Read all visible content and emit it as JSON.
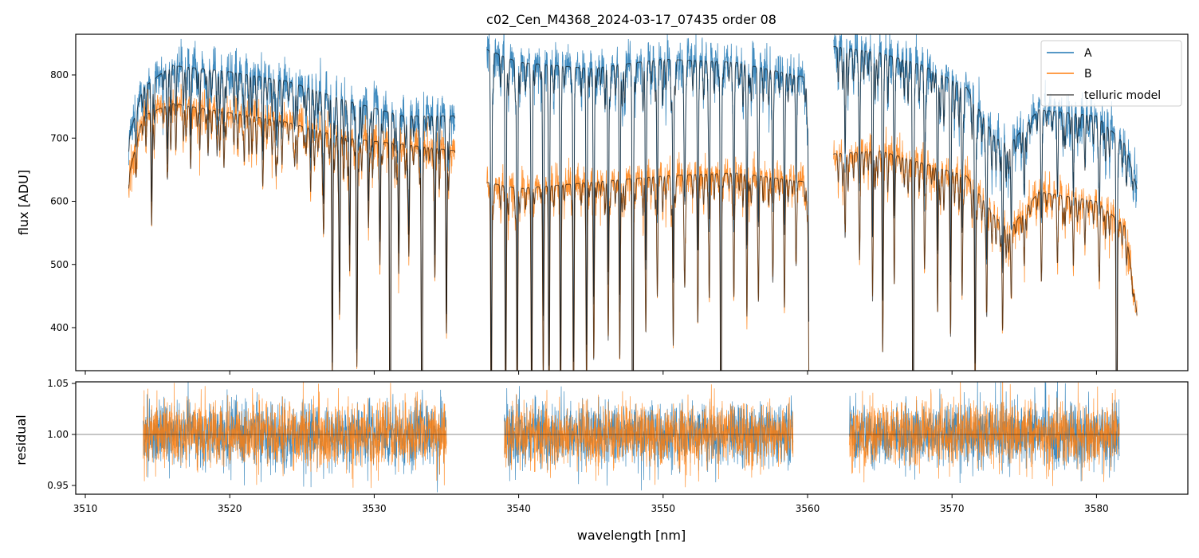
{
  "chart_data": [
    {
      "type": "line",
      "title": "c02_Cen_M4368_2024-03-17_07435  order 08",
      "xlabel": "",
      "ylabel": "flux [ADU]",
      "xlim": [
        3509.3,
        3586.3
      ],
      "ylim": [
        332,
        864
      ],
      "xticks": [
        3510,
        3520,
        3530,
        3540,
        3550,
        3560,
        3570,
        3580
      ],
      "yticks": [
        400,
        500,
        600,
        700,
        800
      ],
      "grid": false,
      "legend": {
        "placement": "top-right",
        "entries": [
          "A",
          "B",
          "telluric model"
        ]
      },
      "colors": {
        "A": "#1f77b4",
        "B": "#ff7f0e",
        "telluric model": "#000000"
      },
      "segments": [
        [
          3513.0,
          3535.6
        ],
        [
          3537.8,
          3560.1
        ],
        [
          3561.8,
          3582.8
        ]
      ],
      "series": [
        {
          "name": "A",
          "continuum": [
            [
              3513.0,
              700
            ],
            [
              3514,
              780
            ],
            [
              3516,
              815
            ],
            [
              3520,
              805
            ],
            [
              3524,
              790
            ],
            [
              3528,
              760
            ],
            [
              3532,
              735
            ],
            [
              3535.6,
              735
            ],
            [
              3537.8,
              840
            ],
            [
              3540,
              820
            ],
            [
              3545,
              810
            ],
            [
              3550,
              825
            ],
            [
              3555,
              820
            ],
            [
              3560.1,
              795
            ],
            [
              3561.8,
              845
            ],
            [
              3565,
              835
            ],
            [
              3568,
              815
            ],
            [
              3571,
              780
            ],
            [
              3573,
              700
            ],
            [
              3574,
              690
            ],
            [
              3576,
              745
            ],
            [
              3580,
              735
            ],
            [
              3582,
              690
            ],
            [
              3582.8,
              620
            ]
          ]
        },
        {
          "name": "B",
          "continuum": [
            [
              3513.0,
              640
            ],
            [
              3514,
              735
            ],
            [
              3516,
              755
            ],
            [
              3520,
              740
            ],
            [
              3524,
              725
            ],
            [
              3528,
              700
            ],
            [
              3532,
              690
            ],
            [
              3535.6,
              680
            ],
            [
              3537.8,
              630
            ],
            [
              3540,
              620
            ],
            [
              3545,
              630
            ],
            [
              3550,
              640
            ],
            [
              3555,
              645
            ],
            [
              3560.1,
              630
            ],
            [
              3561.8,
              675
            ],
            [
              3565,
              680
            ],
            [
              3568,
              660
            ],
            [
              3571,
              640
            ],
            [
              3573,
              575
            ],
            [
              3574,
              555
            ],
            [
              3576,
              615
            ],
            [
              3580,
              600
            ],
            [
              3582,
              560
            ],
            [
              3582.8,
              420
            ]
          ]
        }
      ],
      "telluric_lines": [
        [
          3514.6,
          0.18
        ],
        [
          3515.7,
          0.12
        ],
        [
          3517.3,
          0.08
        ],
        [
          3518.5,
          0.1
        ],
        [
          3519.6,
          0.12
        ],
        [
          3521.0,
          0.1
        ],
        [
          3522.3,
          0.08
        ],
        [
          3523.2,
          0.12
        ],
        [
          3524.5,
          0.09
        ],
        [
          3525.6,
          0.14
        ],
        [
          3526.5,
          0.22
        ],
        [
          3527.1,
          0.55
        ],
        [
          3527.6,
          0.4
        ],
        [
          3528.3,
          0.3
        ],
        [
          3528.8,
          0.52
        ],
        [
          3529.6,
          0.2
        ],
        [
          3530.4,
          0.25
        ],
        [
          3531.1,
          0.9
        ],
        [
          3531.7,
          0.3
        ],
        [
          3532.4,
          0.25
        ],
        [
          3533.3,
          0.9
        ],
        [
          3534.2,
          0.3
        ],
        [
          3535.0,
          0.4
        ],
        [
          3538.1,
          0.62
        ],
        [
          3539.1,
          0.6
        ],
        [
          3539.9,
          0.6
        ],
        [
          3540.9,
          0.62
        ],
        [
          3541.7,
          0.45
        ],
        [
          3542.1,
          0.55
        ],
        [
          3542.9,
          0.58
        ],
        [
          3543.8,
          0.55
        ],
        [
          3544.7,
          0.5
        ],
        [
          3545.2,
          0.45
        ],
        [
          3546.2,
          0.4
        ],
        [
          3547.0,
          0.45
        ],
        [
          3547.9,
          0.9
        ],
        [
          3548.8,
          0.35
        ],
        [
          3549.6,
          0.3
        ],
        [
          3550.7,
          0.42
        ],
        [
          3551.5,
          0.25
        ],
        [
          3552.4,
          0.35
        ],
        [
          3553.2,
          0.3
        ],
        [
          3554.0,
          0.85
        ],
        [
          3554.9,
          0.3
        ],
        [
          3555.8,
          0.35
        ],
        [
          3556.6,
          0.3
        ],
        [
          3557.6,
          0.25
        ],
        [
          3558.4,
          0.3
        ],
        [
          3559.2,
          0.2
        ],
        [
          3560.1,
          0.5
        ],
        [
          3562.6,
          0.2
        ],
        [
          3563.6,
          0.25
        ],
        [
          3564.5,
          0.35
        ],
        [
          3565.2,
          0.45
        ],
        [
          3566.0,
          0.3
        ],
        [
          3567.3,
          0.88
        ],
        [
          3568.1,
          0.25
        ],
        [
          3569.0,
          0.35
        ],
        [
          3569.9,
          0.4
        ],
        [
          3570.7,
          0.3
        ],
        [
          3571.6,
          0.55
        ],
        [
          3572.4,
          0.3
        ],
        [
          3573.5,
          0.3
        ],
        [
          3574.1,
          0.2
        ],
        [
          3575.0,
          0.15
        ],
        [
          3576.2,
          0.18
        ],
        [
          3577.3,
          0.15
        ],
        [
          3578.4,
          0.18
        ],
        [
          3579.2,
          0.12
        ],
        [
          3580.2,
          0.2
        ],
        [
          3581.4,
          0.75
        ]
      ]
    },
    {
      "type": "line",
      "xlabel": "wavelength [nm]",
      "ylabel": "residual",
      "xlim": [
        3509.3,
        3586.3
      ],
      "ylim": [
        0.941,
        1.052
      ],
      "xticks": [
        3510,
        3520,
        3530,
        3540,
        3550,
        3560,
        3570,
        3580
      ],
      "yticks": [
        "0.95",
        "1.00",
        "1.05"
      ],
      "reference_line": 1.0,
      "segments": [
        [
          3514.0,
          3535.0
        ],
        [
          3539.0,
          3559.0
        ],
        [
          3562.9,
          3581.6
        ]
      ],
      "series": [
        {
          "name": "A",
          "mean": 1.0,
          "scatter": 0.016
        },
        {
          "name": "B",
          "mean": 1.0,
          "scatter": 0.016
        }
      ]
    }
  ]
}
